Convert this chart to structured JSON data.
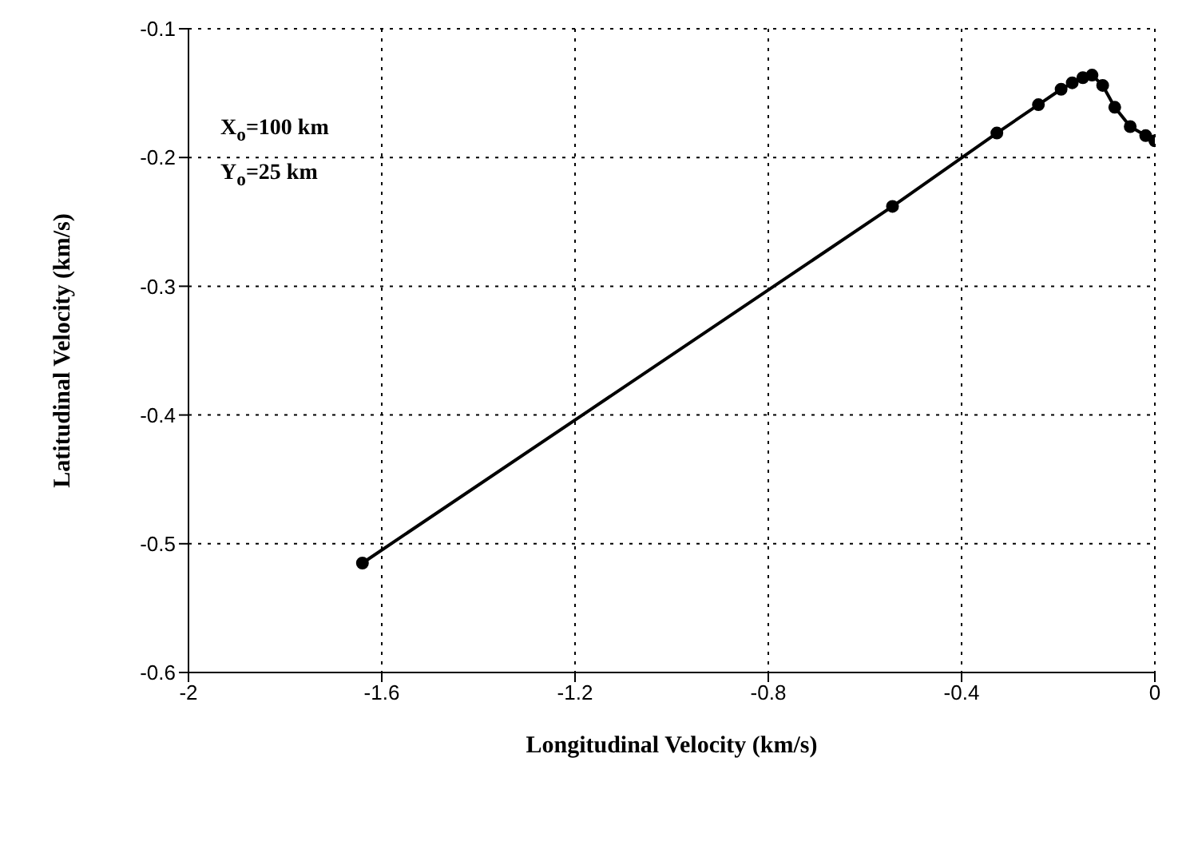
{
  "chart_data": {
    "type": "line",
    "xlabel": "Longitudinal Velocity (km/s)",
    "ylabel": "Latitudinal Velocity (km/s)",
    "annotations": [
      "X$_{o}$=100 km",
      "Y$_{o}$=25 km"
    ],
    "x": [
      -1.64,
      -0.543,
      -0.327,
      -0.241,
      -0.194,
      -0.171,
      -0.149,
      -0.13,
      -0.108,
      -0.083,
      -0.051,
      -0.019,
      0
    ],
    "series": [
      {
        "color": "#000000",
        "values": [
          -0.515,
          -0.238,
          -0.181,
          -0.159,
          -0.147,
          -0.142,
          -0.138,
          -0.136,
          -0.144,
          -0.161,
          -0.176,
          -0.183,
          -0.187
        ]
      }
    ],
    "xlim": [
      -2,
      0
    ],
    "xticks": [
      -2,
      -1.6,
      -1.2,
      -0.8,
      -0.4,
      0
    ],
    "ylim": [
      -0.6,
      -0.1
    ],
    "yticks": [
      -0.6,
      -0.5,
      -0.4,
      -0.3,
      -0.2,
      -0.1
    ],
    "grid": true,
    "marker": "circle",
    "line_style": "solid"
  }
}
